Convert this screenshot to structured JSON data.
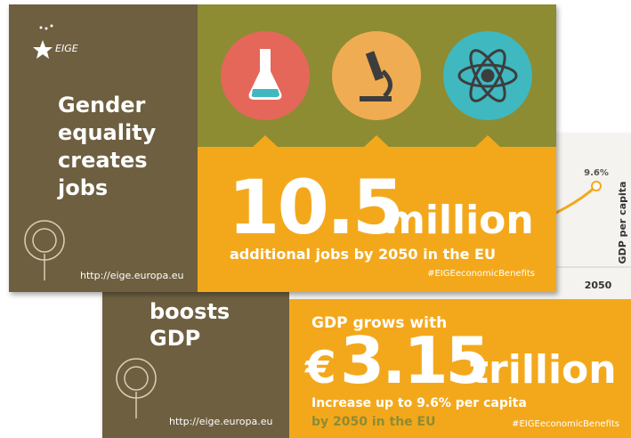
{
  "back_card": {
    "heading": [
      "boosts",
      "GDP"
    ],
    "chart": {
      "value_label": "9.6%",
      "x_label": "2050",
      "y_label": "GDP per capita"
    },
    "headline": "GDP grows with",
    "currency": "€",
    "amount": "3.15",
    "unit": "trillion",
    "detail": "Increase up to 9.6% per capita",
    "detail_2": "by 2050 in the EU",
    "hashtag": "#EIGEeconomicBenefits",
    "url": "http://eige.europa.eu"
  },
  "front_card": {
    "logo": "EIGE",
    "heading": [
      "Gender",
      "equality",
      "creates",
      "jobs"
    ],
    "amount": "10.5",
    "unit": "million",
    "detail": "additional jobs by 2050 in the EU",
    "hashtag": "#EIGEeconomicBenefits",
    "url": "http://eige.europa.eu"
  }
}
